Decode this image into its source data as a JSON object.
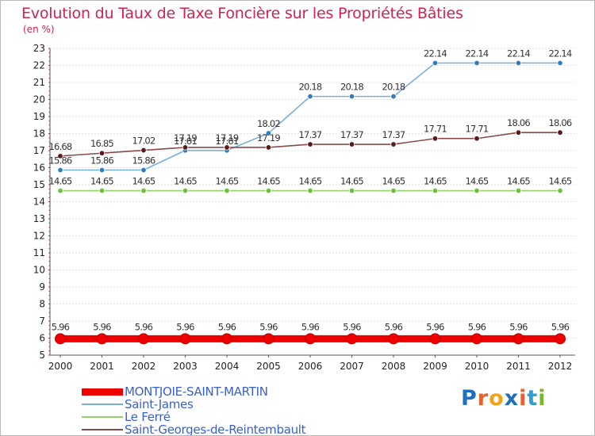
{
  "header": {
    "title": "Evolution du Taux de Taxe Foncière sur les Propriétés Bâties",
    "subtitle": "(en %)"
  },
  "logo": {
    "text": "Proxiti",
    "letter_colors": [
      "#1e6fc0",
      "#e8602c",
      "#f0a21c",
      "#1e6fc0",
      "#e8602c",
      "#2aa0d4",
      "#7bb52e"
    ]
  },
  "chart_data": {
    "type": "line",
    "title": "Evolution du Taux de Taxe Foncière sur les Propriétés Bâties",
    "ylabel": "(en %)",
    "xlabel": "",
    "x": [
      2000,
      2001,
      2002,
      2003,
      2004,
      2005,
      2006,
      2007,
      2008,
      2009,
      2010,
      2011,
      2012
    ],
    "ylim": [
      5,
      23
    ],
    "yticks": [
      5,
      6,
      7,
      8,
      9,
      10,
      11,
      12,
      13,
      14,
      15,
      16,
      17,
      18,
      19,
      20,
      21,
      22,
      23
    ],
    "grid": true,
    "series": [
      {
        "name": "MONTJOIE-SAINT-MARTIN",
        "color": "#ee0000",
        "marker_color": "#ee0000",
        "emphasis": "bold",
        "values": [
          5.96,
          5.96,
          5.96,
          5.96,
          5.96,
          5.96,
          5.96,
          5.96,
          5.96,
          5.96,
          5.96,
          5.96,
          5.96
        ],
        "labels": [
          "5.96",
          "5.96",
          "5.96",
          "5.96",
          "5.96",
          "5.96",
          "5.96",
          "5.96",
          "5.96",
          "5.96",
          "5.96",
          "5.96",
          "5.96"
        ]
      },
      {
        "name": "Saint-James",
        "color": "#7aaedc",
        "marker_color": "#2f7cc1",
        "emphasis": "normal",
        "values": [
          15.86,
          15.86,
          15.86,
          17.01,
          17.01,
          18.02,
          20.18,
          20.18,
          20.18,
          22.14,
          22.14,
          22.14,
          22.14
        ],
        "labels": [
          "15.86",
          "15.86",
          "15.86",
          "17.01",
          "17.01",
          "18.02",
          "20.18",
          "20.18",
          "20.18",
          "22.14",
          "22.14",
          "22.14",
          "22.14"
        ]
      },
      {
        "name": "Le Ferré",
        "color": "#93d36a",
        "marker_color": "#6fbf3f",
        "emphasis": "normal",
        "values": [
          14.65,
          14.65,
          14.65,
          14.65,
          14.65,
          14.65,
          14.65,
          14.65,
          14.65,
          14.65,
          14.65,
          14.65,
          14.65
        ],
        "labels": [
          "14.65",
          "14.65",
          "14.65",
          "14.65",
          "14.65",
          "14.65",
          "14.65",
          "14.65",
          "14.65",
          "14.65",
          "14.65",
          "14.65",
          "14.65"
        ]
      },
      {
        "name": "Saint-Georges-de-Reintembault",
        "color": "#8a4a4a",
        "marker_color": "#5a1a1a",
        "emphasis": "normal",
        "values": [
          16.68,
          16.85,
          17.02,
          17.19,
          17.19,
          17.19,
          17.37,
          17.37,
          17.37,
          17.71,
          17.71,
          18.06,
          18.06
        ],
        "labels": [
          "16.68",
          "16.85",
          "17.02",
          "17.19",
          "17.19",
          "17.19",
          "17.37",
          "17.37",
          "17.37",
          "17.71",
          "17.71",
          "18.06",
          "18.06"
        ]
      }
    ],
    "legend": [
      "MONTJOIE-SAINT-MARTIN",
      "Saint-James",
      "Le Ferré",
      "Saint-Georges-de-Reintembault"
    ],
    "legend_position": "bottom-left"
  }
}
